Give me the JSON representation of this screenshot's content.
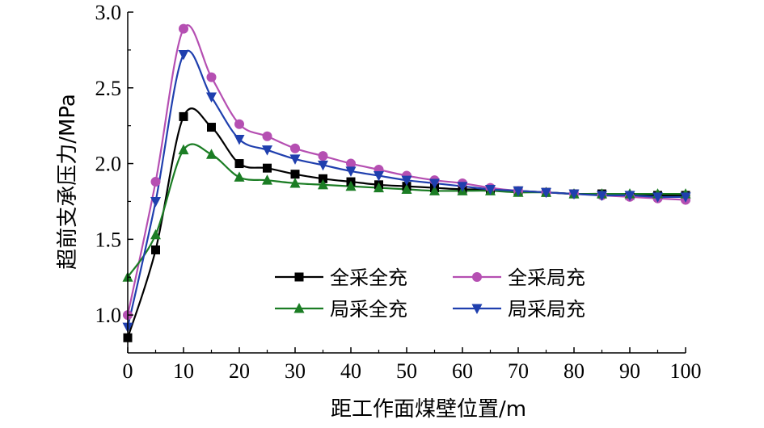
{
  "chart_data": {
    "type": "line",
    "xlabel": "距工作面煤壁位置/m",
    "ylabel": "超前支承压力/MPa",
    "xlim": [
      0,
      100
    ],
    "ylim": [
      0.75,
      3.0
    ],
    "xticks": [
      0,
      10,
      20,
      30,
      40,
      50,
      60,
      70,
      80,
      90,
      100
    ],
    "yticks": [
      1.0,
      1.5,
      2.0,
      2.5,
      3.0
    ],
    "xtick_labels": [
      "0",
      "10",
      "20",
      "30",
      "40",
      "50",
      "60",
      "70",
      "80",
      "90",
      "100"
    ],
    "ytick_labels": [
      "1.0",
      "1.5",
      "2.0",
      "2.5",
      "3.0"
    ],
    "grid": false,
    "legend_position": "lower-right",
    "x": [
      0,
      5,
      10,
      15,
      20,
      25,
      30,
      35,
      40,
      45,
      50,
      55,
      60,
      65,
      70,
      75,
      80,
      85,
      90,
      95,
      100
    ],
    "series": [
      {
        "name": "全采全充",
        "color": "#000000",
        "marker": "square",
        "values": [
          0.85,
          1.43,
          2.31,
          2.24,
          2.0,
          1.97,
          1.93,
          1.9,
          1.88,
          1.86,
          1.85,
          1.84,
          1.83,
          1.83,
          1.82,
          1.81,
          1.8,
          1.8,
          1.79,
          1.79,
          1.79
        ]
      },
      {
        "name": "全采局充",
        "color": "#b54fb2",
        "marker": "circle",
        "values": [
          1.0,
          1.88,
          2.89,
          2.57,
          2.26,
          2.18,
          2.1,
          2.05,
          2.0,
          1.96,
          1.92,
          1.89,
          1.87,
          1.84,
          1.82,
          1.81,
          1.8,
          1.79,
          1.78,
          1.77,
          1.76
        ]
      },
      {
        "name": "局采全充",
        "color": "#1b7d24",
        "marker": "triangle-up",
        "values": [
          1.25,
          1.53,
          2.09,
          2.06,
          1.91,
          1.89,
          1.87,
          1.86,
          1.85,
          1.84,
          1.83,
          1.82,
          1.82,
          1.82,
          1.81,
          1.81,
          1.8,
          1.8,
          1.8,
          1.8,
          1.8
        ]
      },
      {
        "name": "局采局充",
        "color": "#1f3fae",
        "marker": "triangle-down",
        "values": [
          0.92,
          1.75,
          2.72,
          2.44,
          2.16,
          2.09,
          2.03,
          1.99,
          1.95,
          1.92,
          1.89,
          1.87,
          1.85,
          1.83,
          1.82,
          1.81,
          1.8,
          1.79,
          1.79,
          1.78,
          1.78
        ]
      }
    ]
  }
}
